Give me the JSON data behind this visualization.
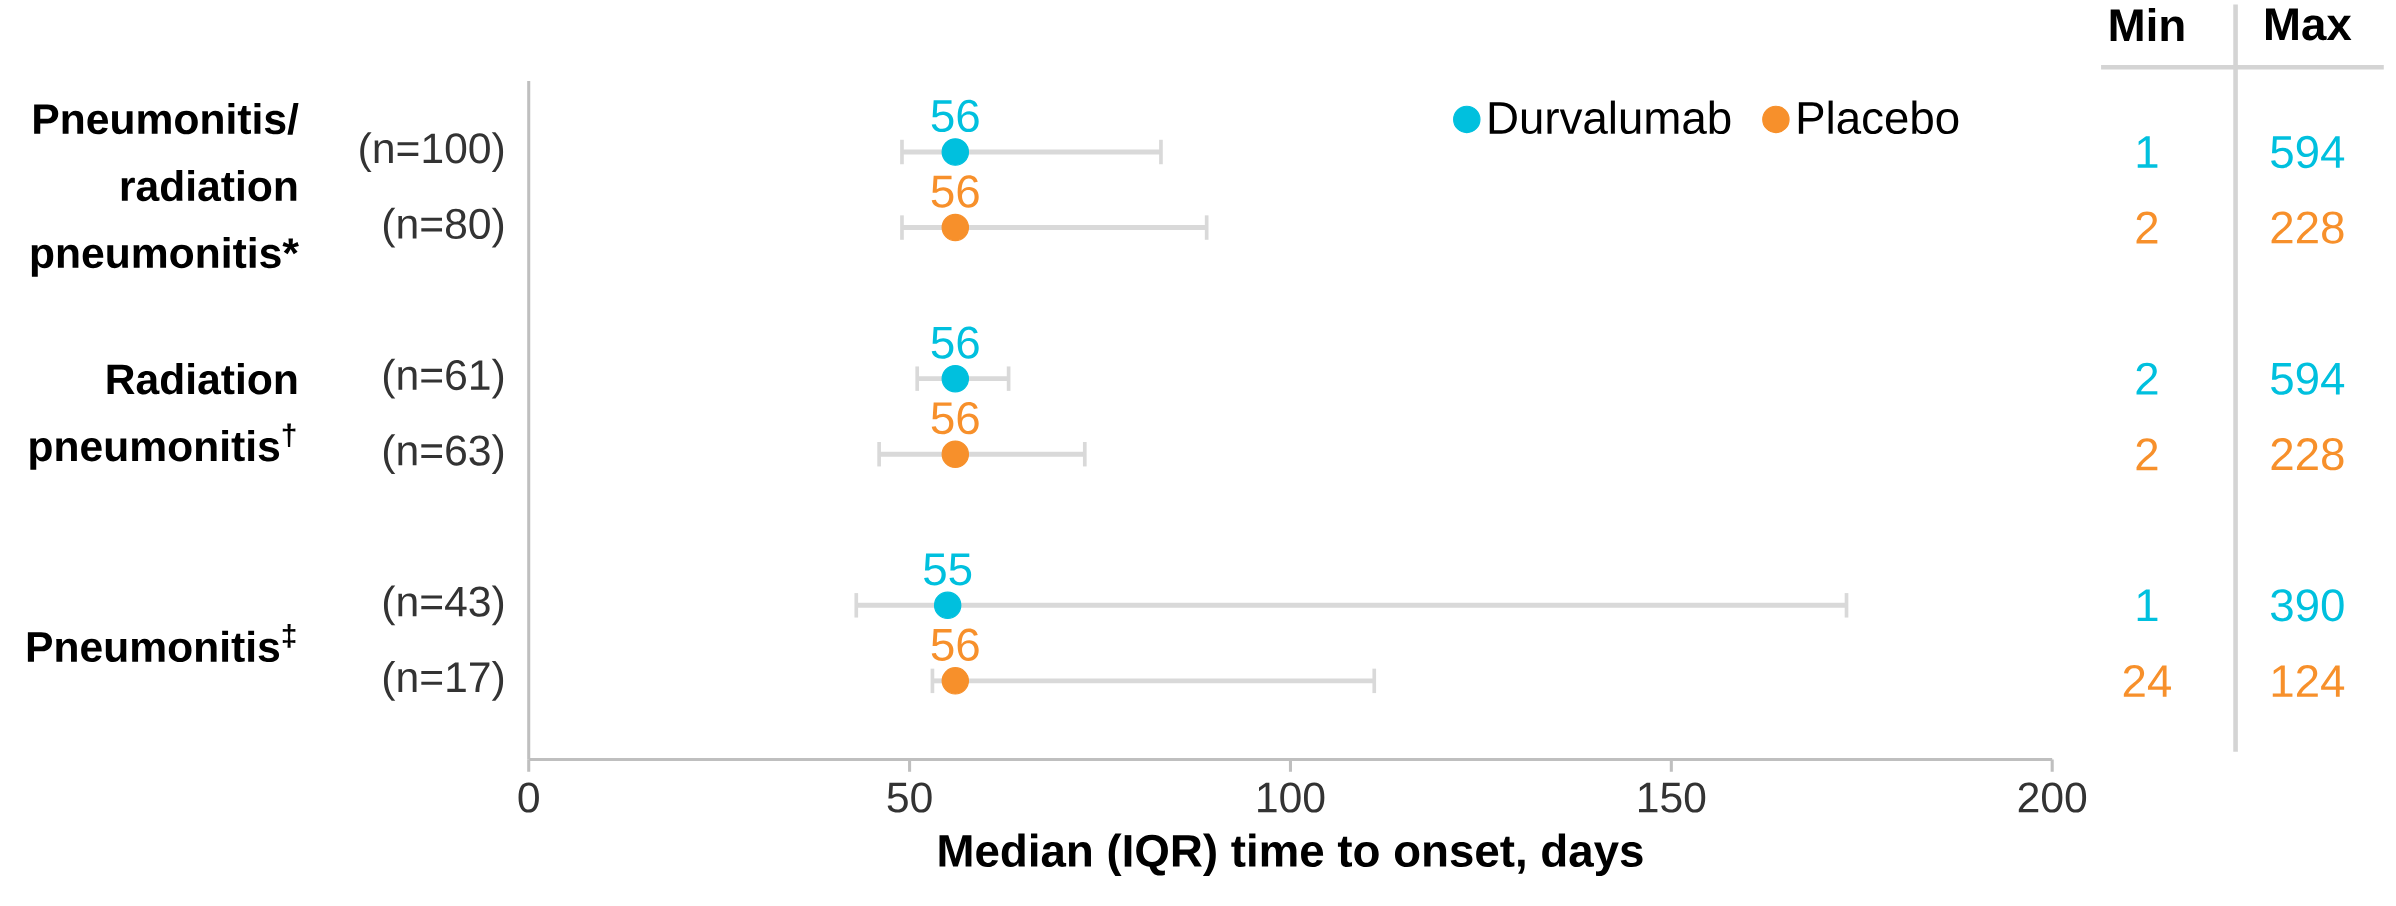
{
  "chart_data": {
    "type": "scatter",
    "orientation": "horizontal",
    "categories": [
      "(n=100)",
      "(n=80)",
      "(n=61)",
      "(n=63)",
      "(n=43)",
      "(n=17)"
    ],
    "xlabel": "Median (IQR) time to onset, days",
    "xlim": [
      0,
      200
    ],
    "xticks": [
      0,
      50,
      100,
      150,
      200
    ],
    "legend": "top right",
    "marker": "circle",
    "grid": false,
    "series": [
      {
        "name": "Durvalumab",
        "color": "#00c0de",
        "values": [
          56,
          null,
          56,
          null,
          55,
          null
        ],
        "errors": [
          [
            49,
            83
          ],
          null,
          [
            51,
            63
          ],
          null,
          [
            43,
            173
          ],
          null
        ],
        "value_labels": [
          "56",
          null,
          "56",
          null,
          "55",
          null
        ]
      },
      {
        "name": "Placebo",
        "color": "#f7902b",
        "values": [
          null,
          56,
          null,
          56,
          null,
          56
        ],
        "errors": [
          null,
          [
            49,
            89
          ],
          null,
          [
            46,
            73
          ],
          null,
          [
            53,
            111
          ]
        ],
        "value_labels": [
          null,
          "56",
          null,
          "56",
          null,
          "56"
        ]
      }
    ],
    "annotations": [
      "Pneumonitis/ radiation pneumonitis*",
      "Radiation pneumonitis$^{†}$",
      "Pneumonitis$^{‡}$",
      "Min",
      "Max",
      "1",
      "594",
      "2",
      "228",
      "2",
      "594",
      "2",
      "228",
      "1",
      "390",
      "24",
      "124"
    ]
  }
}
